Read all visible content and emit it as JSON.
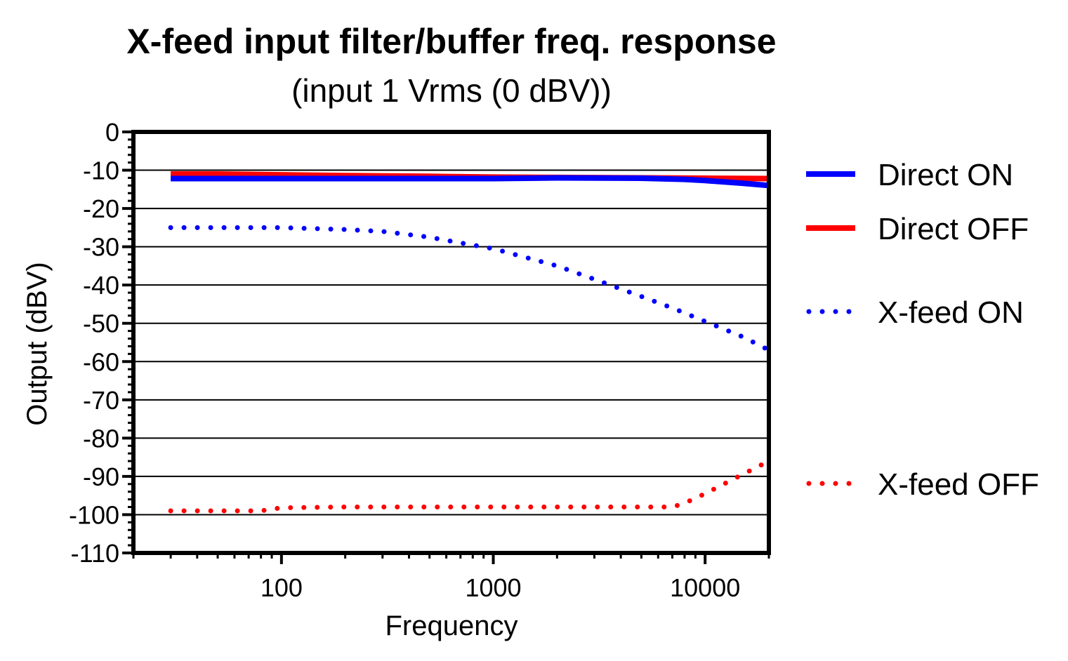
{
  "chart_data": {
    "type": "line",
    "title": "X-feed input filter/buffer freq. response",
    "subtitle": "(input 1 Vrms (0 dBV))",
    "xlabel": "Frequency",
    "ylabel": "Output (dBV)",
    "x_scale": "log",
    "xlim": [
      20,
      20000
    ],
    "ylim": [
      -110,
      0
    ],
    "x_ticks": [
      {
        "value": 100,
        "label": "100"
      },
      {
        "value": 1000,
        "label": "1000"
      },
      {
        "value": 10000,
        "label": "10000"
      }
    ],
    "y_ticks": [
      {
        "value": 0,
        "label": "0"
      },
      {
        "value": -10,
        "label": "-10"
      },
      {
        "value": -20,
        "label": "-20"
      },
      {
        "value": -30,
        "label": "-30"
      },
      {
        "value": -40,
        "label": "-40"
      },
      {
        "value": -50,
        "label": "-50"
      },
      {
        "value": -60,
        "label": "-60"
      },
      {
        "value": -70,
        "label": "-70"
      },
      {
        "value": -80,
        "label": "-80"
      },
      {
        "value": -90,
        "label": "-90"
      },
      {
        "value": -100,
        "label": "-100"
      },
      {
        "value": -110,
        "label": "-110"
      }
    ],
    "grid": "horizontal major",
    "legend_position": "right",
    "series": [
      {
        "name": "Direct ON",
        "color": "#0000ff",
        "style": "solid",
        "x": [
          30,
          50,
          100,
          200,
          500,
          1000,
          2000,
          5000,
          8000,
          10000,
          15000,
          20000
        ],
        "y": [
          -12.2,
          -12.2,
          -12.2,
          -12.2,
          -12.2,
          -12.2,
          -12.0,
          -12.1,
          -12.4,
          -12.7,
          -13.4,
          -14.0
        ]
      },
      {
        "name": "Direct OFF",
        "color": "#ff0000",
        "style": "solid",
        "x": [
          30,
          50,
          100,
          200,
          500,
          1000,
          2000,
          5000,
          10000,
          20000
        ],
        "y": [
          -11.0,
          -11.0,
          -11.2,
          -11.4,
          -11.6,
          -11.8,
          -11.9,
          -12.0,
          -12.1,
          -12.2
        ]
      },
      {
        "name": "X-feed ON",
        "color": "#0000ff",
        "style": "dotted",
        "x": [
          30,
          50,
          100,
          200,
          300,
          500,
          700,
          1000,
          2000,
          3000,
          5000,
          7000,
          10000,
          15000,
          20000
        ],
        "y": [
          -25,
          -25,
          -25,
          -25.5,
          -26,
          -27.5,
          -29,
          -30.5,
          -35,
          -38.5,
          -43,
          -46,
          -49.5,
          -53.5,
          -57
        ]
      },
      {
        "name": "X-feed OFF",
        "color": "#ff0000",
        "style": "dotted",
        "x": [
          30,
          50,
          80,
          100,
          200,
          500,
          1000,
          2000,
          5000,
          7000,
          8000,
          10000,
          15000,
          20000
        ],
        "y": [
          -99,
          -99,
          -99,
          -98.2,
          -98,
          -98,
          -98,
          -98,
          -98,
          -98,
          -97,
          -94.5,
          -89.5,
          -86
        ]
      }
    ]
  }
}
